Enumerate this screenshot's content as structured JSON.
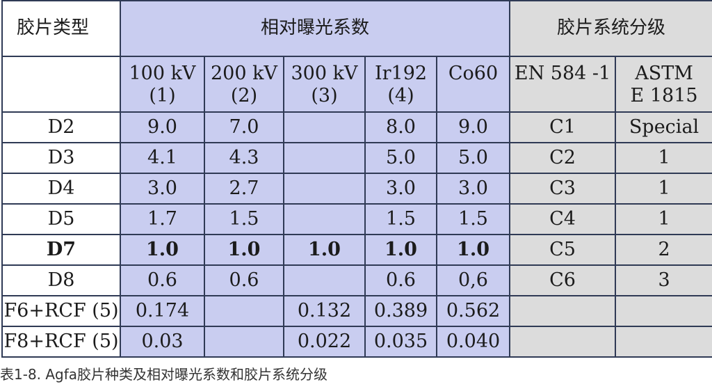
{
  "header": {
    "film_type": "胶片类型",
    "relative_exposure": "相对曝光系数",
    "classification": "胶片系统分级"
  },
  "subheaders": {
    "kv100": [
      "100 kV",
      "(1)"
    ],
    "kv200": [
      "200 kV",
      "(2)"
    ],
    "kv300": [
      "300 kV",
      "(3)"
    ],
    "ir192": [
      "Ir192",
      "(4)"
    ],
    "co60": [
      "Co60",
      ""
    ],
    "en584": [
      "EN 584 -1",
      ""
    ],
    "astm": [
      "ASTM",
      "E 1815"
    ]
  },
  "rows": [
    {
      "film": "D2",
      "v100": "9.0",
      "v200": "7.0",
      "v300": "",
      "ir": "8.0",
      "co": "9.0",
      "en": "C1",
      "astm": "Special"
    },
    {
      "film": "D3",
      "v100": "4.1",
      "v200": "4.3",
      "v300": "",
      "ir": "5.0",
      "co": "5.0",
      "en": "C2",
      "astm": "1"
    },
    {
      "film": "D4",
      "v100": "3.0",
      "v200": "2.7",
      "v300": "",
      "ir": "3.0",
      "co": "3.0",
      "en": "C3",
      "astm": "1"
    },
    {
      "film": "D5",
      "v100": "1.7",
      "v200": "1.5",
      "v300": "",
      "ir": "1.5",
      "co": "1.5",
      "en": "C4",
      "astm": "1"
    },
    {
      "film": "D7",
      "v100": "1.0",
      "v200": "1.0",
      "v300": "1.0",
      "ir": "1.0",
      "co": "1.0",
      "en": "C5",
      "astm": "2"
    },
    {
      "film": "D8",
      "v100": "0.6",
      "v200": "0.6",
      "v300": "",
      "ir": "0.6",
      "co": "0,6",
      "en": "C6",
      "astm": "3"
    },
    {
      "film": "F6+RCF (5)",
      "v100": "0.174",
      "v200": "",
      "v300": "0.132",
      "ir": "0.389",
      "co": "0.562",
      "en": "",
      "astm": ""
    },
    {
      "film": "F8+RCF (5)",
      "v100": "0.03",
      "v200": "",
      "v300": "0.022",
      "ir": "0.035",
      "co": "0.040",
      "en": "",
      "astm": ""
    }
  ],
  "caption": "表1-8. Agfa胶片种类及相对曝光系数和胶片系统分级",
  "colors": {
    "exposure_bg": "#c9cdf0",
    "classification_bg": "#dcdcdc",
    "border": "#2f3a55"
  }
}
